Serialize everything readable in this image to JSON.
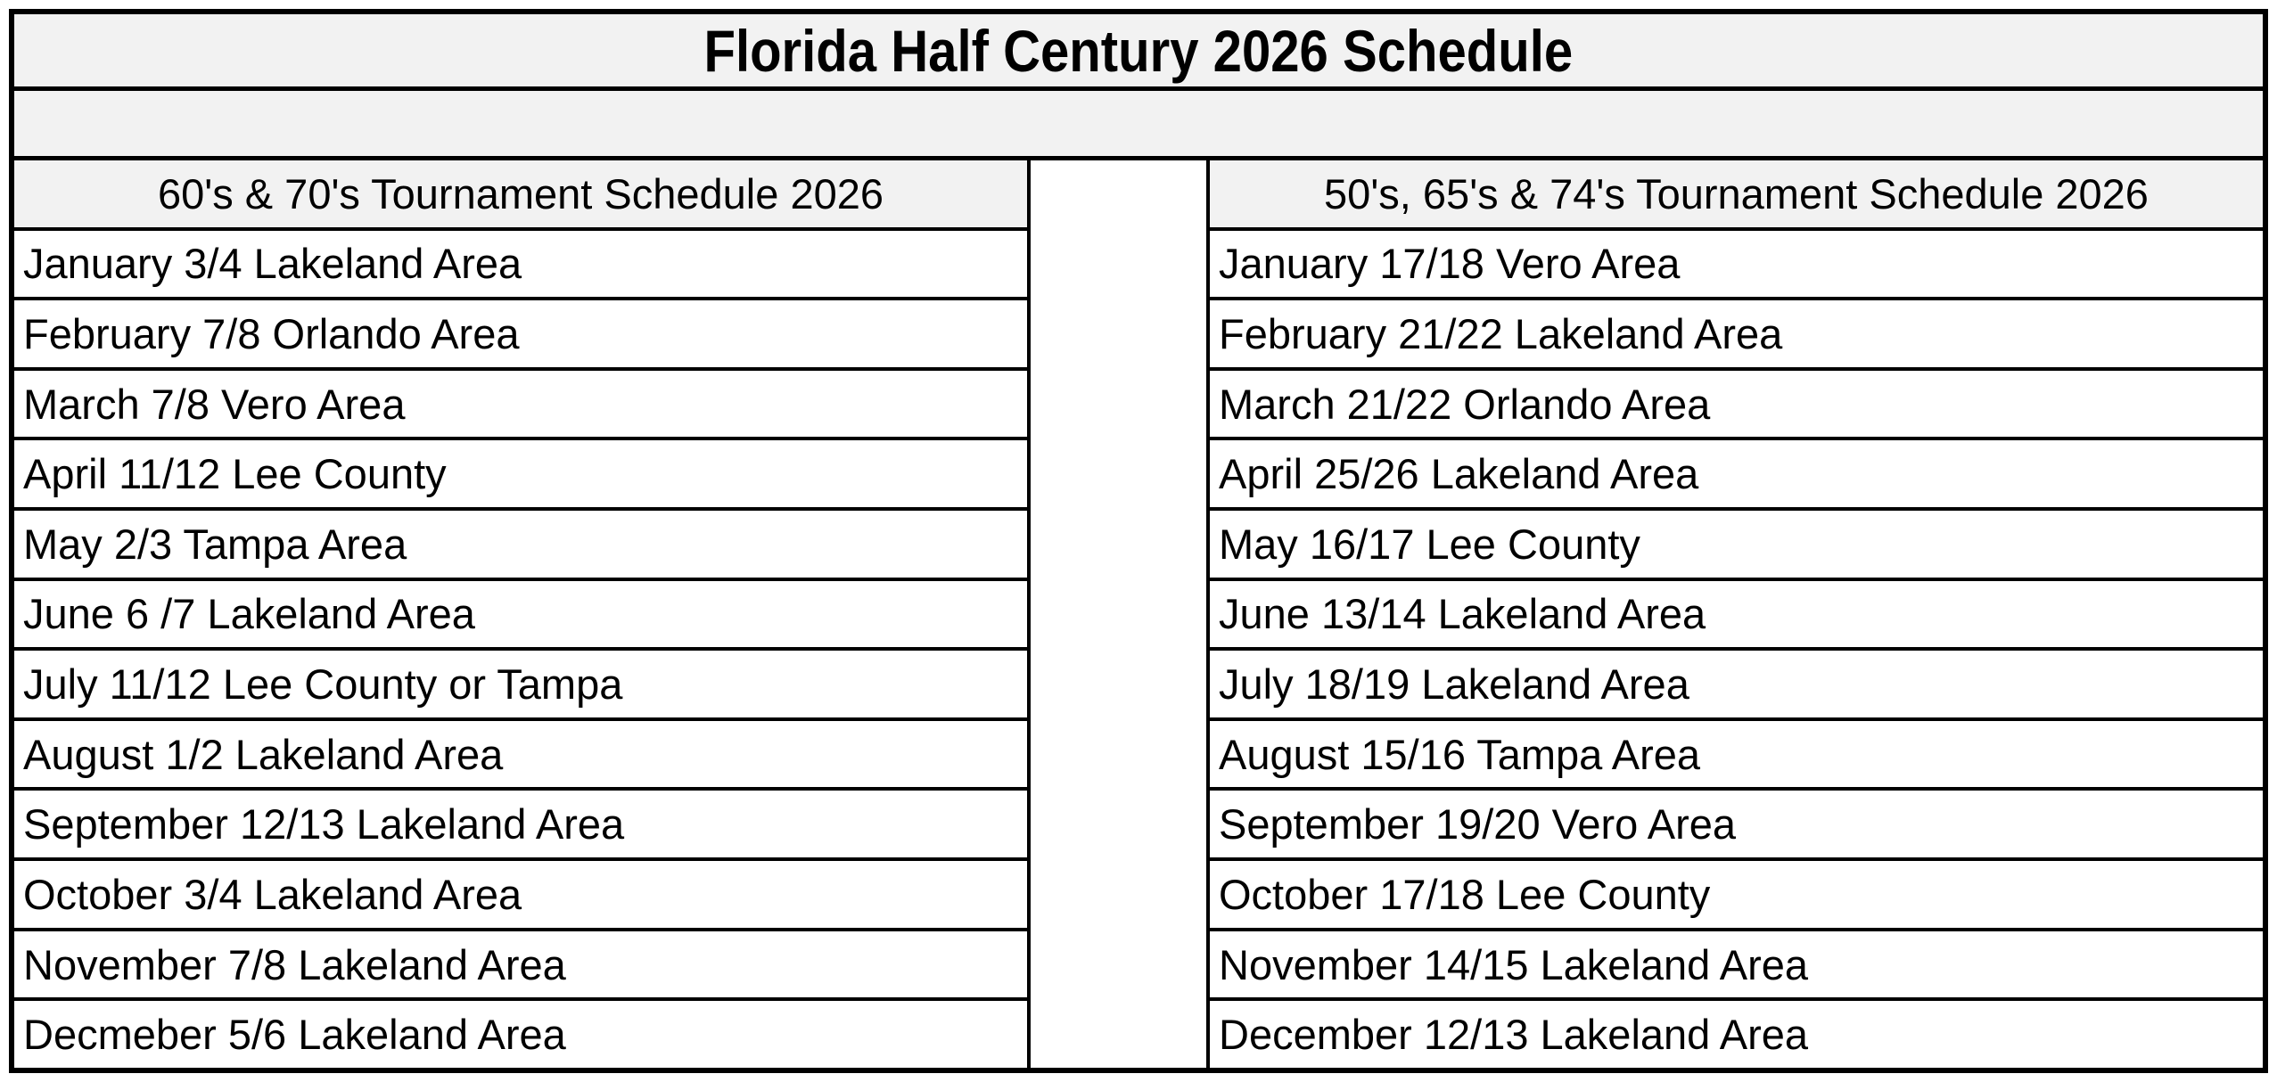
{
  "title": "Florida Half Century 2026 Schedule",
  "left_table": {
    "header": "60's & 70's Tournament Schedule 2026",
    "rows": [
      "January 3/4 Lakeland Area",
      "February 7/8 Orlando Area",
      "March 7/8 Vero Area",
      "April 11/12 Lee County",
      "May 2/3 Tampa Area",
      "June 6 /7 Lakeland Area",
      "July 11/12 Lee County or Tampa",
      "August 1/2 Lakeland Area",
      "September 12/13 Lakeland Area",
      "October 3/4 Lakeland Area",
      "November 7/8 Lakeland Area",
      "Decmeber 5/6 Lakeland Area"
    ]
  },
  "right_table": {
    "header": "50's, 65's & 74's Tournament Schedule 2026",
    "rows": [
      "January 17/18 Vero Area",
      "February 21/22 Lakeland Area",
      "March 21/22 Orlando Area",
      "April 25/26 Lakeland Area",
      "May 16/17 Lee County",
      "June 13/14 Lakeland Area",
      "July 18/19 Lakeland Area",
      "August 15/16 Tampa Area",
      "September 19/20 Vero Area",
      "October 17/18 Lee County",
      "November 14/15 Lakeland Area",
      "December 12/13 Lakeland Area"
    ]
  },
  "colors": {
    "border": "#000000",
    "header_bg": "#f2f2f2",
    "cell_bg": "#ffffff",
    "text": "#000000"
  }
}
